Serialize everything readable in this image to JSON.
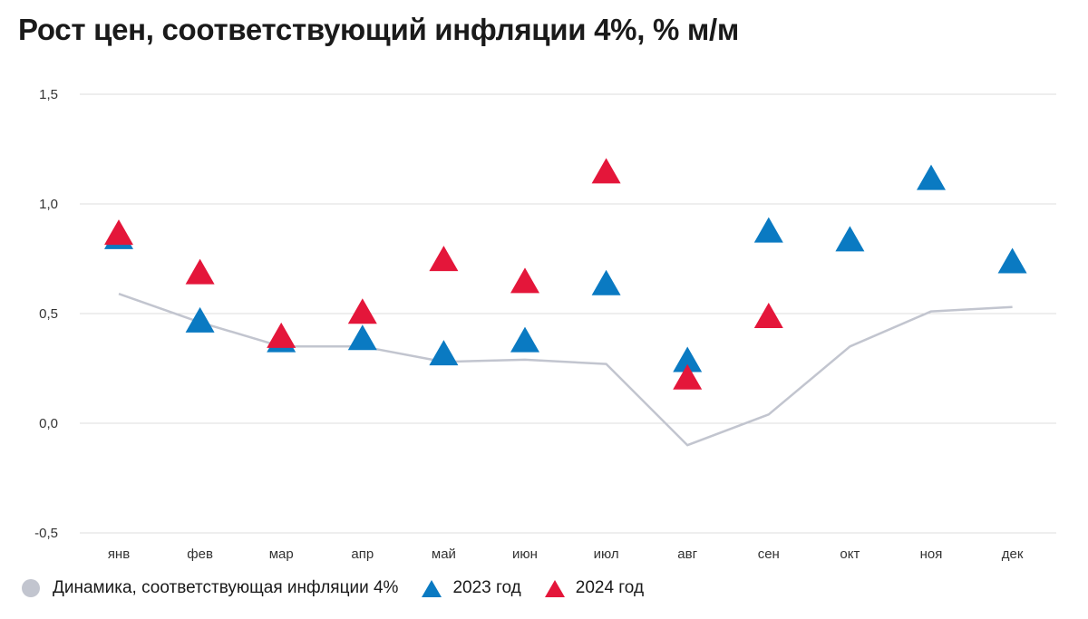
{
  "title": "Рост цен, соответствующий инфляции 4%, % м/м",
  "chart_data": {
    "type": "line",
    "title": "Рост цен, соответствующий инфляции 4%, % м/м",
    "categories": [
      "янв",
      "фев",
      "мар",
      "апр",
      "май",
      "июн",
      "июл",
      "авг",
      "сен",
      "окт",
      "ноя",
      "дек"
    ],
    "ylim": [
      -0.5,
      1.5
    ],
    "yticks": [
      -0.5,
      0.0,
      0.5,
      1.0,
      1.5
    ],
    "ytick_labels": [
      "-0,5",
      "0,0",
      "0,5",
      "1,0",
      "1,5"
    ],
    "grid": true,
    "legend": "bottom-left",
    "series": [
      {
        "name": "Динамика, соответствующая инфляции 4%",
        "type": "line",
        "color": "#c2c5cf",
        "values": [
          0.59,
          0.46,
          0.35,
          0.35,
          0.28,
          0.29,
          0.27,
          -0.1,
          0.04,
          0.35,
          0.51,
          0.53
        ]
      },
      {
        "name": "2023 год",
        "type": "scatter",
        "marker": "triangle",
        "color": "#0a7ac2",
        "values": [
          0.84,
          0.46,
          0.37,
          0.38,
          0.31,
          0.37,
          0.63,
          0.28,
          0.87,
          0.83,
          1.11,
          0.73
        ]
      },
      {
        "name": "2024 год",
        "type": "scatter",
        "marker": "triangle",
        "color": "#e4163a",
        "values": [
          0.86,
          0.68,
          0.39,
          0.5,
          0.74,
          0.64,
          1.14,
          0.2,
          0.48,
          null,
          null,
          null
        ]
      }
    ]
  }
}
